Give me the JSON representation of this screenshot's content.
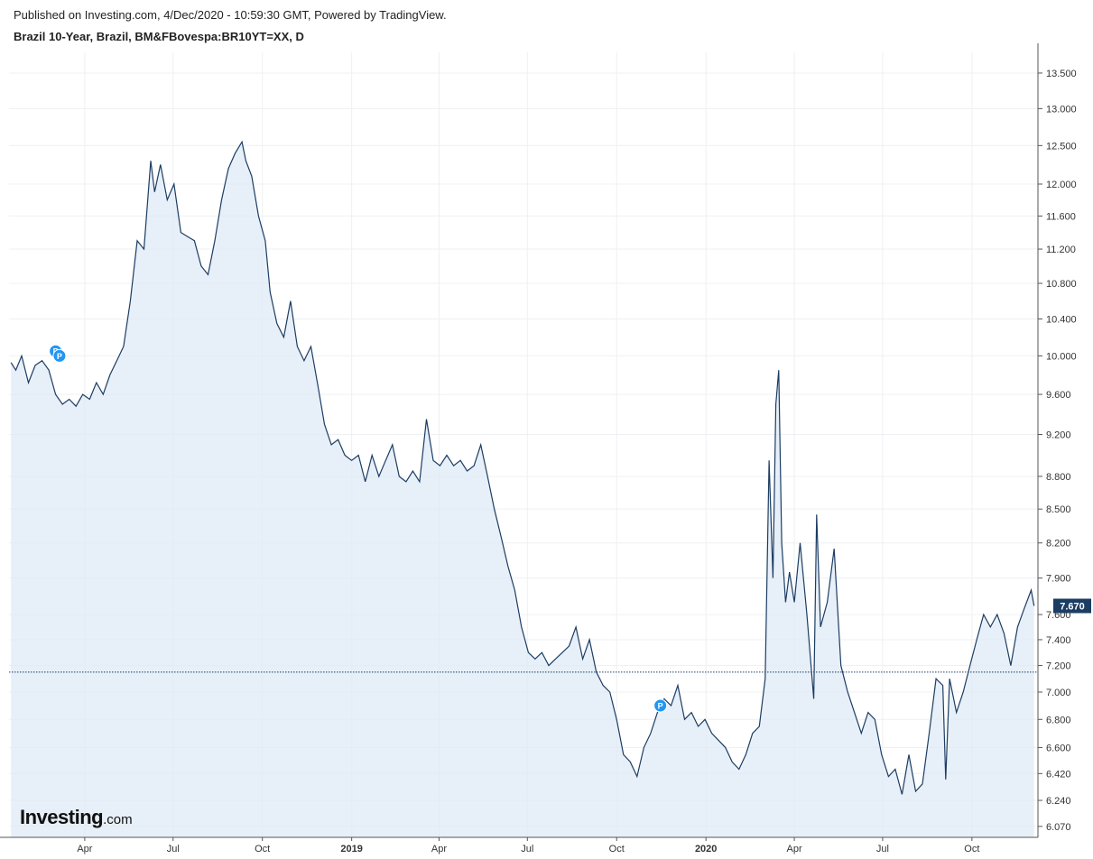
{
  "header": {
    "published": "Published on Investing.com, 4/Dec/2020 - 10:59:30 GMT, Powered by TradingView.",
    "symbol": "Brazil 10-Year, Brazil, BM&FBovespa:BR10YT=XX, D"
  },
  "brand": {
    "name": "Investing",
    "suffix": ".com"
  },
  "colors": {
    "line": "#1c3d63",
    "fill": "#dfeaf6",
    "grid": "#eef0f3",
    "marker": "#2196f3",
    "price_badge": "#1c3d63",
    "ref_line": "#1c3d63"
  },
  "chart_data": {
    "type": "area",
    "series": [
      {
        "name": "",
        "points": [
          [
            "2018-01-15",
            9.93
          ],
          [
            "2018-01-20",
            9.85
          ],
          [
            "2018-01-26",
            10.0
          ],
          [
            "2018-02-02",
            9.72
          ],
          [
            "2018-02-09",
            9.9
          ],
          [
            "2018-02-16",
            9.95
          ],
          [
            "2018-02-23",
            9.85
          ],
          [
            "2018-03-02",
            9.6
          ],
          [
            "2018-03-09",
            9.5
          ],
          [
            "2018-03-16",
            9.55
          ],
          [
            "2018-03-23",
            9.48
          ],
          [
            "2018-03-30",
            9.6
          ],
          [
            "2018-04-06",
            9.55
          ],
          [
            "2018-04-13",
            9.72
          ],
          [
            "2018-04-20",
            9.6
          ],
          [
            "2018-04-27",
            9.8
          ],
          [
            "2018-05-04",
            9.95
          ],
          [
            "2018-05-11",
            10.1
          ],
          [
            "2018-05-18",
            10.6
          ],
          [
            "2018-05-25",
            11.3
          ],
          [
            "2018-06-01",
            11.2
          ],
          [
            "2018-06-08",
            12.3
          ],
          [
            "2018-06-12",
            11.9
          ],
          [
            "2018-06-18",
            12.25
          ],
          [
            "2018-06-25",
            11.8
          ],
          [
            "2018-07-02",
            12.0
          ],
          [
            "2018-07-09",
            11.4
          ],
          [
            "2018-07-16",
            11.35
          ],
          [
            "2018-07-23",
            11.3
          ],
          [
            "2018-07-30",
            11.0
          ],
          [
            "2018-08-06",
            10.9
          ],
          [
            "2018-08-13",
            11.3
          ],
          [
            "2018-08-20",
            11.8
          ],
          [
            "2018-08-27",
            12.2
          ],
          [
            "2018-09-03",
            12.4
          ],
          [
            "2018-09-10",
            12.55
          ],
          [
            "2018-09-14",
            12.3
          ],
          [
            "2018-09-20",
            12.1
          ],
          [
            "2018-09-27",
            11.6
          ],
          [
            "2018-10-04",
            11.3
          ],
          [
            "2018-10-09",
            10.7
          ],
          [
            "2018-10-16",
            10.35
          ],
          [
            "2018-10-23",
            10.2
          ],
          [
            "2018-10-30",
            10.6
          ],
          [
            "2018-11-06",
            10.1
          ],
          [
            "2018-11-13",
            9.95
          ],
          [
            "2018-11-20",
            10.1
          ],
          [
            "2018-11-27",
            9.7
          ],
          [
            "2018-12-04",
            9.3
          ],
          [
            "2018-12-11",
            9.1
          ],
          [
            "2018-12-18",
            9.15
          ],
          [
            "2018-12-25",
            9.0
          ],
          [
            "2019-01-01",
            8.95
          ],
          [
            "2019-01-08",
            9.0
          ],
          [
            "2019-01-15",
            8.75
          ],
          [
            "2019-01-22",
            9.0
          ],
          [
            "2019-01-29",
            8.8
          ],
          [
            "2019-02-05",
            8.95
          ],
          [
            "2019-02-12",
            9.1
          ],
          [
            "2019-02-19",
            8.8
          ],
          [
            "2019-02-26",
            8.75
          ],
          [
            "2019-03-05",
            8.85
          ],
          [
            "2019-03-12",
            8.75
          ],
          [
            "2019-03-19",
            9.35
          ],
          [
            "2019-03-26",
            8.95
          ],
          [
            "2019-04-02",
            8.9
          ],
          [
            "2019-04-09",
            9.0
          ],
          [
            "2019-04-16",
            8.9
          ],
          [
            "2019-04-23",
            8.95
          ],
          [
            "2019-04-30",
            8.85
          ],
          [
            "2019-05-07",
            8.9
          ],
          [
            "2019-05-14",
            9.1
          ],
          [
            "2019-05-21",
            8.8
          ],
          [
            "2019-05-28",
            8.5
          ],
          [
            "2019-06-04",
            8.25
          ],
          [
            "2019-06-11",
            8.0
          ],
          [
            "2019-06-18",
            7.8
          ],
          [
            "2019-06-25",
            7.5
          ],
          [
            "2019-07-02",
            7.3
          ],
          [
            "2019-07-09",
            7.25
          ],
          [
            "2019-07-16",
            7.3
          ],
          [
            "2019-07-23",
            7.2
          ],
          [
            "2019-07-30",
            7.25
          ],
          [
            "2019-08-06",
            7.3
          ],
          [
            "2019-08-13",
            7.35
          ],
          [
            "2019-08-20",
            7.5
          ],
          [
            "2019-08-27",
            7.25
          ],
          [
            "2019-09-03",
            7.4
          ],
          [
            "2019-09-10",
            7.15
          ],
          [
            "2019-09-17",
            7.05
          ],
          [
            "2019-09-24",
            7.0
          ],
          [
            "2019-10-01",
            6.8
          ],
          [
            "2019-10-08",
            6.55
          ],
          [
            "2019-10-15",
            6.5
          ],
          [
            "2019-10-22",
            6.4
          ],
          [
            "2019-10-29",
            6.6
          ],
          [
            "2019-11-05",
            6.7
          ],
          [
            "2019-11-12",
            6.85
          ],
          [
            "2019-11-19",
            6.95
          ],
          [
            "2019-11-26",
            6.9
          ],
          [
            "2019-12-03",
            7.05
          ],
          [
            "2019-12-10",
            6.8
          ],
          [
            "2019-12-17",
            6.85
          ],
          [
            "2019-12-24",
            6.75
          ],
          [
            "2019-12-31",
            6.8
          ],
          [
            "2020-01-07",
            6.7
          ],
          [
            "2020-01-14",
            6.65
          ],
          [
            "2020-01-21",
            6.6
          ],
          [
            "2020-01-28",
            6.5
          ],
          [
            "2020-02-04",
            6.45
          ],
          [
            "2020-02-11",
            6.55
          ],
          [
            "2020-02-18",
            6.7
          ],
          [
            "2020-02-25",
            6.75
          ],
          [
            "2020-03-02",
            7.1
          ],
          [
            "2020-03-06",
            8.95
          ],
          [
            "2020-03-10",
            7.9
          ],
          [
            "2020-03-13",
            9.5
          ],
          [
            "2020-03-16",
            9.85
          ],
          [
            "2020-03-19",
            8.2
          ],
          [
            "2020-03-23",
            7.7
          ],
          [
            "2020-03-27",
            7.95
          ],
          [
            "2020-04-01",
            7.7
          ],
          [
            "2020-04-07",
            8.2
          ],
          [
            "2020-04-14",
            7.6
          ],
          [
            "2020-04-21",
            6.95
          ],
          [
            "2020-04-24",
            8.45
          ],
          [
            "2020-04-28",
            7.5
          ],
          [
            "2020-05-05",
            7.7
          ],
          [
            "2020-05-12",
            8.15
          ],
          [
            "2020-05-19",
            7.2
          ],
          [
            "2020-05-26",
            7.0
          ],
          [
            "2020-06-02",
            6.85
          ],
          [
            "2020-06-09",
            6.7
          ],
          [
            "2020-06-16",
            6.85
          ],
          [
            "2020-06-23",
            6.8
          ],
          [
            "2020-06-30",
            6.55
          ],
          [
            "2020-07-07",
            6.4
          ],
          [
            "2020-07-14",
            6.45
          ],
          [
            "2020-07-21",
            6.28
          ],
          [
            "2020-07-28",
            6.55
          ],
          [
            "2020-08-04",
            6.3
          ],
          [
            "2020-08-11",
            6.35
          ],
          [
            "2020-08-18",
            6.7
          ],
          [
            "2020-08-25",
            7.1
          ],
          [
            "2020-09-01",
            7.05
          ],
          [
            "2020-09-04",
            6.38
          ],
          [
            "2020-09-08",
            7.1
          ],
          [
            "2020-09-15",
            6.85
          ],
          [
            "2020-09-22",
            7.0
          ],
          [
            "2020-09-29",
            7.2
          ],
          [
            "2020-10-06",
            7.4
          ],
          [
            "2020-10-13",
            7.6
          ],
          [
            "2020-10-20",
            7.5
          ],
          [
            "2020-10-27",
            7.6
          ],
          [
            "2020-11-03",
            7.45
          ],
          [
            "2020-11-10",
            7.2
          ],
          [
            "2020-11-17",
            7.5
          ],
          [
            "2020-11-24",
            7.65
          ],
          [
            "2020-12-01",
            7.8
          ],
          [
            "2020-12-04",
            7.67
          ]
        ]
      }
    ],
    "x_range": [
      "2018-01-13",
      "2020-12-08"
    ],
    "x_ticks": [
      {
        "date": "2018-04-01",
        "label": "Apr",
        "bold": false
      },
      {
        "date": "2018-07-01",
        "label": "Jul",
        "bold": false
      },
      {
        "date": "2018-10-01",
        "label": "Oct",
        "bold": false
      },
      {
        "date": "2019-01-01",
        "label": "2019",
        "bold": true
      },
      {
        "date": "2019-04-01",
        "label": "Apr",
        "bold": false
      },
      {
        "date": "2019-07-01",
        "label": "Jul",
        "bold": false
      },
      {
        "date": "2019-10-01",
        "label": "Oct",
        "bold": false
      },
      {
        "date": "2020-01-01",
        "label": "2020",
        "bold": true
      },
      {
        "date": "2020-04-01",
        "label": "Apr",
        "bold": false
      },
      {
        "date": "2020-07-01",
        "label": "Jul",
        "bold": false
      },
      {
        "date": "2020-10-01",
        "label": "Oct",
        "bold": false
      }
    ],
    "y_scale": "log",
    "y_range": [
      6.0,
      13.8
    ],
    "y_ticks": [
      "13.500",
      "13.000",
      "12.500",
      "12.000",
      "11.600",
      "11.200",
      "10.800",
      "10.400",
      "10.000",
      "9.600",
      "9.200",
      "8.800",
      "8.500",
      "8.200",
      "7.900",
      "7.600",
      "7.400",
      "7.200",
      "7.000",
      "6.800",
      "6.600",
      "6.420",
      "6.240",
      "6.070"
    ],
    "last_price": {
      "value": 7.67,
      "label": "7.670"
    },
    "reference_line": 7.15,
    "markers": [
      {
        "date": "2018-03-02",
        "value": 10.05,
        "label": "P"
      },
      {
        "date": "2018-03-06",
        "value": 10.0,
        "label": "P"
      },
      {
        "date": "2019-11-15",
        "value": 6.9,
        "label": "P"
      }
    ],
    "grid": true
  }
}
